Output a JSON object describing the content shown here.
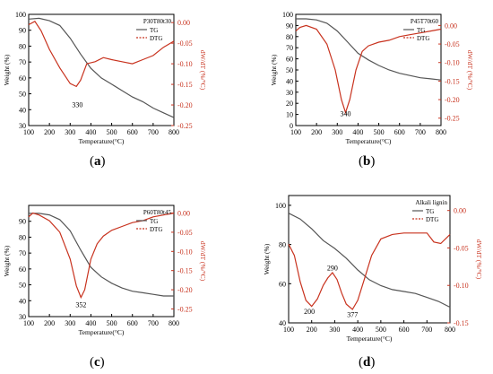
{
  "chart_data": [
    {
      "type": "line",
      "caption": "a",
      "legend_title": "P30T80t30",
      "xlabel": "Temperature(°C)",
      "ylabel": "Weight (%)",
      "y2label": "dW/dT (%/°C)",
      "xlim": [
        100,
        800
      ],
      "ylim": [
        30,
        100
      ],
      "y2lim": [
        -0.25,
        0.02
      ],
      "xticks": [
        100,
        200,
        300,
        400,
        500,
        600,
        700,
        800
      ],
      "yticks": [
        30,
        40,
        50,
        60,
        70,
        80,
        90,
        100
      ],
      "y2ticks": [
        0.0,
        -0.05,
        -0.1,
        -0.15,
        -0.2,
        -0.25
      ],
      "annotations": [
        {
          "text": "330",
          "x": 335,
          "y": -0.205
        }
      ],
      "series": [
        {
          "name": "TG",
          "axis": "left",
          "color": "#555555",
          "dash": "solid",
          "x": [
            100,
            150,
            200,
            250,
            300,
            350,
            400,
            450,
            500,
            550,
            600,
            650,
            700,
            750,
            800
          ],
          "y": [
            97,
            97.5,
            96,
            93,
            85,
            75,
            66,
            60,
            56,
            52,
            48,
            45,
            41,
            38,
            35
          ]
        },
        {
          "name": "DTG",
          "axis": "right",
          "color": "#c8321e",
          "dash": "solid",
          "x": [
            100,
            130,
            160,
            200,
            250,
            300,
            330,
            350,
            380,
            420,
            460,
            500,
            550,
            600,
            650,
            700,
            750,
            800
          ],
          "y": [
            -0.005,
            0.003,
            -0.02,
            -0.065,
            -0.11,
            -0.148,
            -0.155,
            -0.14,
            -0.1,
            -0.095,
            -0.085,
            -0.09,
            -0.095,
            -0.1,
            -0.09,
            -0.08,
            -0.06,
            -0.045
          ]
        }
      ]
    },
    {
      "type": "line",
      "caption": "b",
      "legend_title": "P45T70t60",
      "xlabel": "Temperature(°C)",
      "ylabel": "Weight (%)",
      "y2label": "dW/dT (%/°C)",
      "xlim": [
        100,
        800
      ],
      "ylim": [
        0,
        100
      ],
      "y2lim": [
        -0.27,
        0.03
      ],
      "xticks": [
        100,
        200,
        300,
        400,
        500,
        600,
        700,
        800
      ],
      "yticks": [
        0,
        10,
        20,
        30,
        40,
        50,
        60,
        70,
        80,
        90,
        100
      ],
      "y2ticks": [
        0.0,
        -0.05,
        -0.1,
        -0.15,
        -0.2,
        -0.25
      ],
      "annotations": [
        {
          "text": "340",
          "x": 340,
          "y": -0.245
        }
      ],
      "series": [
        {
          "name": "TG",
          "axis": "left",
          "color": "#555555",
          "dash": "solid",
          "x": [
            100,
            150,
            200,
            250,
            300,
            350,
            400,
            450,
            500,
            550,
            600,
            650,
            700,
            750,
            800
          ],
          "y": [
            96,
            96,
            95,
            92,
            85,
            75,
            65,
            59,
            54,
            50,
            47,
            45,
            43,
            42,
            41
          ]
        },
        {
          "name": "DTG",
          "axis": "right",
          "color": "#c8321e",
          "dash": "solid",
          "x": [
            100,
            120,
            150,
            200,
            250,
            290,
            320,
            340,
            360,
            390,
            420,
            450,
            500,
            550,
            600,
            650,
            700,
            750,
            800
          ],
          "y": [
            -0.015,
            -0.005,
            0.0,
            -0.01,
            -0.05,
            -0.12,
            -0.2,
            -0.235,
            -0.2,
            -0.12,
            -0.07,
            -0.055,
            -0.045,
            -0.04,
            -0.03,
            -0.025,
            -0.02,
            -0.015,
            -0.01
          ]
        }
      ]
    },
    {
      "type": "line",
      "caption": "c",
      "legend_title": "P60T80t45",
      "xlabel": "Temperature(°C)",
      "ylabel": "Weight (%)",
      "y2label": "dW/dT (%/°C)",
      "xlim": [
        100,
        800
      ],
      "ylim": [
        30,
        100
      ],
      "y2lim": [
        -0.27,
        0.02
      ],
      "xticks": [
        100,
        200,
        300,
        400,
        500,
        600,
        700,
        800
      ],
      "yticks": [
        30,
        40,
        50,
        60,
        70,
        80,
        90
      ],
      "y2ticks": [
        0.0,
        -0.05,
        -0.1,
        -0.15,
        -0.2,
        -0.25
      ],
      "annotations": [
        {
          "text": "352",
          "x": 352,
          "y": -0.245
        }
      ],
      "series": [
        {
          "name": "TG",
          "axis": "left",
          "color": "#555555",
          "dash": "solid",
          "x": [
            100,
            150,
            200,
            250,
            300,
            350,
            400,
            450,
            500,
            550,
            600,
            650,
            700,
            750,
            800
          ],
          "y": [
            95,
            95,
            94,
            91,
            84,
            72,
            61,
            55,
            51,
            48,
            46,
            45,
            44,
            43,
            43
          ]
        },
        {
          "name": "DTG",
          "axis": "right",
          "color": "#c8321e",
          "dash": "solid",
          "x": [
            100,
            120,
            150,
            200,
            250,
            300,
            330,
            352,
            370,
            400,
            430,
            460,
            500,
            550,
            600,
            650,
            700,
            750,
            800
          ],
          "y": [
            -0.01,
            0.0,
            -0.005,
            -0.02,
            -0.05,
            -0.12,
            -0.19,
            -0.22,
            -0.2,
            -0.12,
            -0.08,
            -0.06,
            -0.045,
            -0.035,
            -0.025,
            -0.02,
            -0.01,
            -0.005,
            0.0
          ]
        }
      ]
    },
    {
      "type": "line",
      "caption": "d",
      "legend_title": "Alkali lignin",
      "xlabel": "Temperature(°C)",
      "ylabel": "Weight (%)",
      "y2label": "dW/dT (%/°C)",
      "xlim": [
        100,
        800
      ],
      "ylim": [
        40,
        105
      ],
      "y2lim": [
        -0.15,
        0.02
      ],
      "xticks": [
        100,
        200,
        300,
        400,
        500,
        600,
        700,
        800
      ],
      "yticks": [
        40,
        60,
        80,
        100
      ],
      "y2ticks": [
        0.0,
        -0.05,
        -0.1,
        -0.15
      ],
      "annotations": [
        {
          "text": "200",
          "x": 190,
          "y": -0.138
        },
        {
          "text": "290",
          "x": 290,
          "y": -0.08
        },
        {
          "text": "377",
          "x": 377,
          "y": -0.142
        }
      ],
      "series": [
        {
          "name": "TG",
          "axis": "left",
          "color": "#555555",
          "dash": "solid",
          "x": [
            100,
            150,
            200,
            250,
            300,
            350,
            400,
            450,
            500,
            550,
            600,
            650,
            700,
            750,
            800
          ],
          "y": [
            96,
            93,
            88,
            82,
            78,
            73,
            67,
            62,
            59,
            57,
            56,
            55,
            53,
            51,
            48
          ]
        },
        {
          "name": "DTG",
          "axis": "right",
          "color": "#c8321e",
          "dash": "solid",
          "x": [
            100,
            125,
            150,
            175,
            200,
            225,
            250,
            270,
            290,
            310,
            330,
            350,
            377,
            400,
            430,
            460,
            500,
            550,
            600,
            650,
            700,
            730,
            760,
            800
          ],
          "y": [
            -0.045,
            -0.06,
            -0.095,
            -0.12,
            -0.128,
            -0.118,
            -0.1,
            -0.09,
            -0.083,
            -0.092,
            -0.11,
            -0.125,
            -0.132,
            -0.12,
            -0.09,
            -0.06,
            -0.038,
            -0.032,
            -0.03,
            -0.03,
            -0.03,
            -0.042,
            -0.044,
            -0.032
          ]
        }
      ]
    }
  ]
}
